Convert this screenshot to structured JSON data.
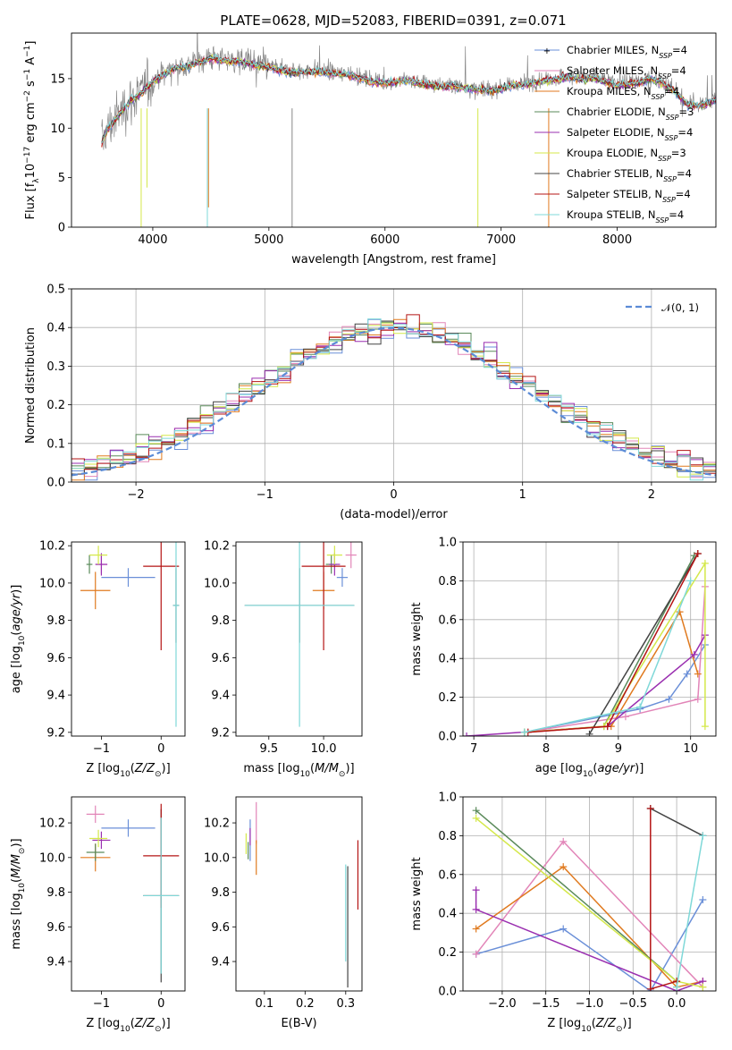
{
  "figure_title": "PLATE=0628, MJD=52083, FIBERID=0391, z=0.071",
  "colors": {
    "Chabrier MILES": "#6a8fd8",
    "Salpeter MILES": "#e285b8",
    "Kroupa MILES": "#e07a1f",
    "Chabrier ELODIE": "#5a8a5a",
    "Salpeter ELODIE": "#9a2fb0",
    "Kroupa ELODIE": "#d4e84a",
    "Chabrier STELIB": "#444444",
    "Salpeter STELIB": "#b41414",
    "Kroupa STELIB": "#7fd8d8",
    "data": "#888888",
    "normal": "#5b8bd6"
  },
  "chart_data": [
    {
      "type": "line",
      "id": "spectrum",
      "title": "PLATE=0628, MJD=52083, FIBERID=0391, z=0.071",
      "xlabel": "wavelength [Angstrom, rest frame]",
      "ylabel": "Flux [fλ10⁻¹⁷ erg cm⁻² s⁻¹ A⁻¹]",
      "xlim": [
        3300,
        8850
      ],
      "ylim": [
        0,
        19.6
      ],
      "xticks": [
        4000,
        5000,
        6000,
        7000,
        8000
      ],
      "yticks": [
        0,
        5,
        10,
        15
      ],
      "grid": false,
      "legend_position": "top-right",
      "continuum": [
        [
          3560,
          8.5
        ],
        [
          3600,
          9.8
        ],
        [
          3700,
          11.3
        ],
        [
          3800,
          12.8
        ],
        [
          3900,
          13.6
        ],
        [
          4000,
          14.8
        ],
        [
          4100,
          15.6
        ],
        [
          4200,
          16.3
        ],
        [
          4300,
          16.4
        ],
        [
          4400,
          16.8
        ],
        [
          4500,
          17.2
        ],
        [
          4600,
          17.0
        ],
        [
          4700,
          16.9
        ],
        [
          4800,
          16.8
        ],
        [
          4900,
          16.5
        ],
        [
          5000,
          16.3
        ],
        [
          5100,
          16.0
        ],
        [
          5200,
          15.7
        ],
        [
          5300,
          15.8
        ],
        [
          5400,
          15.9
        ],
        [
          5500,
          15.7
        ],
        [
          5600,
          15.6
        ],
        [
          5700,
          15.5
        ],
        [
          5800,
          15.2
        ],
        [
          5900,
          14.8
        ],
        [
          6000,
          14.7
        ],
        [
          6100,
          14.8
        ],
        [
          6200,
          15.0
        ],
        [
          6300,
          14.6
        ],
        [
          6400,
          14.5
        ],
        [
          6500,
          14.3
        ],
        [
          6600,
          14.4
        ],
        [
          6700,
          14.2
        ],
        [
          6800,
          14.0
        ],
        [
          6900,
          13.9
        ],
        [
          7000,
          14.1
        ],
        [
          7100,
          14.4
        ],
        [
          7200,
          14.5
        ],
        [
          7300,
          14.8
        ],
        [
          7400,
          15.0
        ],
        [
          7500,
          15.1
        ],
        [
          7600,
          15.3
        ],
        [
          7700,
          15.0
        ],
        [
          7800,
          15.2
        ],
        [
          7900,
          14.8
        ],
        [
          8000,
          14.5
        ],
        [
          8100,
          14.6
        ],
        [
          8200,
          14.8
        ],
        [
          8300,
          15.1
        ],
        [
          8400,
          14.6
        ],
        [
          8500,
          13.8
        ],
        [
          8600,
          12.5
        ],
        [
          8700,
          12.3
        ],
        [
          8850,
          13.0
        ]
      ],
      "series": [
        {
          "name": "Chabrier MILES, N_SSP=4"
        },
        {
          "name": "Salpeter MILES, N_SSP=4"
        },
        {
          "name": "Kroupa MILES, N_SSP=4"
        },
        {
          "name": "Chabrier ELODIE, N_SSP=3"
        },
        {
          "name": "Salpeter ELODIE, N_SSP=4"
        },
        {
          "name": "Kroupa ELODIE, N_SSP=3"
        },
        {
          "name": "Chabrier STELIB, N_SSP=4"
        },
        {
          "name": "Salpeter STELIB, N_SSP=4"
        },
        {
          "name": "Kroupa STELIB, N_SSP=4"
        }
      ],
      "legend": [
        {
          "pre": "Chabrier MILES, N",
          "sub": "SSP",
          "post": "=4"
        },
        {
          "pre": "Salpeter MILES, N",
          "sub": "SSP",
          "post": "=4"
        },
        {
          "pre": "Kroupa MILES, N",
          "sub": "SSP",
          "post": "=4"
        },
        {
          "pre": "Chabrier ELODIE, N",
          "sub": "SSP",
          "post": "=3"
        },
        {
          "pre": "Salpeter ELODIE, N",
          "sub": "SSP",
          "post": "=4"
        },
        {
          "pre": "Kroupa ELODIE, N",
          "sub": "SSP",
          "post": "=3"
        },
        {
          "pre": "Chabrier STELIB, N",
          "sub": "SSP",
          "post": "=4"
        },
        {
          "pre": "Salpeter STELIB, N",
          "sub": "SSP",
          "post": "=4"
        },
        {
          "pre": "Kroupa STELIB, N",
          "sub": "SSP",
          "post": "=4"
        }
      ]
    },
    {
      "type": "histogram",
      "id": "residuals",
      "xlabel": "(data-model)/error",
      "ylabel": "Normed distribution",
      "xlim": [
        -2.5,
        2.5
      ],
      "ylim": [
        0,
        0.5
      ],
      "xticks": [
        -2,
        -1,
        0,
        1,
        2
      ],
      "yticks": [
        0.0,
        0.1,
        0.2,
        0.3,
        0.4,
        0.5
      ],
      "grid": true,
      "bin_width": 0.1,
      "reference_curve": {
        "name": "𝒩(0, 1)",
        "legend_position": "top-right"
      }
    },
    {
      "type": "scatter",
      "id": "age-vs-Z",
      "xlabel": "Z [log10(Z/Z⊙)]",
      "ylabel": "age [log10(age/yr)]",
      "xlim": [
        -1.5,
        0.4
      ],
      "ylim": [
        9.18,
        10.22
      ],
      "xticks": [
        -1,
        0
      ],
      "yticks": [
        9.2,
        9.4,
        9.6,
        9.8,
        10.0,
        10.2
      ],
      "points": [
        {
          "model": "Chabrier MILES",
          "x": -0.55,
          "xerr": 0.45,
          "y": 10.03,
          "yerr": 0.05
        },
        {
          "model": "Salpeter MILES",
          "x": -1.0,
          "xerr": 0.1,
          "y": 10.1,
          "yerr": 0.05
        },
        {
          "model": "Kroupa MILES",
          "x": -1.1,
          "xerr": 0.25,
          "y": 9.96,
          "yerr": 0.1
        },
        {
          "model": "Chabrier ELODIE",
          "x": -1.2,
          "xerr": 0.05,
          "y": 10.1,
          "yerr": 0.05
        },
        {
          "model": "Salpeter ELODIE",
          "x": -1.0,
          "xerr": 0.1,
          "y": 10.1,
          "yerr": 0.06
        },
        {
          "model": "Kroupa ELODIE",
          "x": -1.05,
          "xerr": 0.15,
          "y": 10.15,
          "yerr": 0.05
        },
        {
          "model": "Chabrier STELIB",
          "x": 0.25,
          "xerr": 0.05,
          "y": 9.88,
          "yerr": 0.2
        },
        {
          "model": "Salpeter STELIB",
          "x": 0.0,
          "xerr": 0.3,
          "y": 10.09,
          "yerr": 0.45
        },
        {
          "model": "Kroupa STELIB",
          "x": 0.25,
          "xerr": 0.05,
          "y": 9.88,
          "yerr": 0.65
        }
      ]
    },
    {
      "type": "scatter",
      "id": "age-vs-mass",
      "xlabel": "mass [log10(M/M⊙)]",
      "ylabel": "",
      "xlim": [
        9.2,
        10.35
      ],
      "ylim": [
        9.18,
        10.22
      ],
      "xticks": [
        9.5,
        10.0
      ],
      "yticks": [
        9.2,
        9.4,
        9.6,
        9.8,
        10.0,
        10.2
      ],
      "points": [
        {
          "model": "Chabrier MILES",
          "x": 10.17,
          "xerr": 0.05,
          "y": 10.03,
          "yerr": 0.05
        },
        {
          "model": "Salpeter MILES",
          "x": 10.25,
          "xerr": 0.05,
          "y": 10.15,
          "yerr": 0.07
        },
        {
          "model": "Kroupa MILES",
          "x": 10.0,
          "xerr": 0.1,
          "y": 9.96,
          "yerr": 0.1
        },
        {
          "model": "Chabrier ELODIE",
          "x": 10.07,
          "xerr": 0.05,
          "y": 10.1,
          "yerr": 0.05
        },
        {
          "model": "Salpeter ELODIE",
          "x": 10.1,
          "xerr": 0.05,
          "y": 10.1,
          "yerr": 0.06
        },
        {
          "model": "Kroupa ELODIE",
          "x": 10.1,
          "xerr": 0.07,
          "y": 10.15,
          "yerr": 0.05
        },
        {
          "model": "Chabrier STELIB",
          "x": 9.78,
          "xerr": 0.5,
          "y": 9.88,
          "yerr": 0.2
        },
        {
          "model": "Salpeter STELIB",
          "x": 10.0,
          "xerr": 0.2,
          "y": 10.09,
          "yerr": 0.45
        },
        {
          "model": "Kroupa STELIB",
          "x": 9.78,
          "xerr": 0.5,
          "y": 9.88,
          "yerr": 0.65
        }
      ]
    },
    {
      "type": "line",
      "id": "weight-vs-age",
      "xlabel": "age [log10(age/yr)]",
      "ylabel": "mass weight",
      "xlim": [
        6.85,
        10.35
      ],
      "ylim": [
        0,
        1.0
      ],
      "xticks": [
        7,
        8,
        9,
        10
      ],
      "yticks": [
        0.0,
        0.2,
        0.4,
        0.6,
        0.8,
        1.0
      ],
      "grid": true,
      "series": [
        {
          "model": "Chabrier MILES",
          "x": [
            7.7,
            9.3,
            9.7,
            9.95,
            10.2
          ],
          "y": [
            0.02,
            0.14,
            0.19,
            0.32,
            0.47
          ]
        },
        {
          "model": "Salpeter MILES",
          "x": [
            7.7,
            9.1,
            10.1,
            10.2
          ],
          "y": [
            0.02,
            0.1,
            0.19,
            0.77
          ]
        },
        {
          "model": "Kroupa MILES",
          "x": [
            7.7,
            8.9,
            9.85,
            10.1
          ],
          "y": [
            0.02,
            0.05,
            0.64,
            0.32
          ]
        },
        {
          "model": "Chabrier ELODIE",
          "x": [
            7.7,
            8.8,
            10.05
          ],
          "y": [
            0.02,
            0.05,
            0.93
          ]
        },
        {
          "model": "Salpeter ELODIE",
          "x": [
            6.9,
            8.85,
            10.05,
            10.2
          ],
          "y": [
            0.0,
            0.05,
            0.42,
            0.52
          ]
        },
        {
          "model": "Kroupa ELODIE",
          "x": [
            7.7,
            8.8,
            10.2,
            10.2
          ],
          "y": [
            0.02,
            0.05,
            0.89,
            0.05
          ]
        },
        {
          "model": "Chabrier STELIB",
          "x": [
            8.6,
            10.1
          ],
          "y": [
            0.01,
            0.94
          ]
        },
        {
          "model": "Salpeter STELIB",
          "x": [
            7.75,
            8.85,
            10.1
          ],
          "y": [
            0.02,
            0.05,
            0.94
          ]
        },
        {
          "model": "Kroupa STELIB",
          "x": [
            7.7,
            9.3,
            10.0
          ],
          "y": [
            0.02,
            0.15,
            0.8
          ]
        }
      ]
    },
    {
      "type": "scatter",
      "id": "mass-vs-Z",
      "xlabel": "Z [log10(Z/Z⊙)]",
      "ylabel": "mass [log10(M/M⊙)]",
      "xlim": [
        -1.5,
        0.4
      ],
      "ylim": [
        9.23,
        10.35
      ],
      "xticks": [
        -1,
        0
      ],
      "yticks": [
        9.4,
        9.6,
        9.8,
        10.0,
        10.2
      ],
      "points": [
        {
          "model": "Chabrier MILES",
          "x": -0.55,
          "xerr": 0.45,
          "y": 10.17,
          "yerr": 0.05
        },
        {
          "model": "Salpeter MILES",
          "x": -1.1,
          "xerr": 0.15,
          "y": 10.25,
          "yerr": 0.05
        },
        {
          "model": "Kroupa MILES",
          "x": -1.1,
          "xerr": 0.25,
          "y": 10.0,
          "yerr": 0.08
        },
        {
          "model": "Chabrier ELODIE",
          "x": -1.1,
          "xerr": 0.15,
          "y": 10.03,
          "yerr": 0.05
        },
        {
          "model": "Salpeter ELODIE",
          "x": -1.0,
          "xerr": 0.15,
          "y": 10.1,
          "yerr": 0.05
        },
        {
          "model": "Kroupa ELODIE",
          "x": -1.05,
          "xerr": 0.15,
          "y": 10.11,
          "yerr": 0.05
        },
        {
          "model": "Chabrier STELIB",
          "x": 0.0,
          "xerr": 0.3,
          "y": 9.78,
          "yerr": 0.5
        },
        {
          "model": "Salpeter STELIB",
          "x": 0.0,
          "xerr": 0.3,
          "y": 10.01,
          "yerr": 0.3
        },
        {
          "model": "Kroupa STELIB",
          "x": 0.0,
          "xerr": 0.3,
          "y": 9.78,
          "yerr": 0.45
        }
      ]
    },
    {
      "type": "scatter",
      "id": "mass-vs-EBV",
      "xlabel": "E(B-V)",
      "ylabel": "",
      "xlim": [
        0.03,
        0.34
      ],
      "ylim": [
        9.23,
        10.35
      ],
      "xticks": [
        0.1,
        0.2,
        0.3
      ],
      "yticks": [
        9.4,
        9.6,
        9.8,
        10.0,
        10.2
      ],
      "points": [
        {
          "model": "Chabrier MILES",
          "x": 0.065,
          "y": 10.1,
          "yerr": 0.12
        },
        {
          "model": "Salpeter MILES",
          "x": 0.08,
          "y": 10.2,
          "yerr": 0.12
        },
        {
          "model": "Kroupa MILES",
          "x": 0.08,
          "y": 10.0,
          "yerr": 0.1
        },
        {
          "model": "Chabrier ELODIE",
          "x": 0.06,
          "y": 10.04,
          "yerr": 0.05
        },
        {
          "model": "Salpeter ELODIE",
          "x": 0.065,
          "y": 10.12,
          "yerr": 0.05
        },
        {
          "model": "Kroupa ELODIE",
          "x": 0.055,
          "y": 10.08,
          "yerr": 0.06
        },
        {
          "model": "Chabrier STELIB",
          "x": 0.305,
          "y": 9.6,
          "yerr": 0.35
        },
        {
          "model": "Salpeter STELIB",
          "x": 0.33,
          "y": 9.9,
          "yerr": 0.2
        },
        {
          "model": "Kroupa STELIB",
          "x": 0.3,
          "y": 9.68,
          "yerr": 0.28
        }
      ]
    },
    {
      "type": "line",
      "id": "weight-vs-Z",
      "xlabel": "Z [log10(Z/Z⊙)]",
      "ylabel": "mass weight",
      "xlim": [
        -2.45,
        0.45
      ],
      "ylim": [
        0,
        1.0
      ],
      "xticks": [
        -2.0,
        -1.5,
        -1.0,
        -0.5,
        0.0
      ],
      "yticks": [
        0.0,
        0.2,
        0.4,
        0.6,
        0.8,
        1.0
      ],
      "grid": true,
      "series": [
        {
          "model": "Chabrier MILES",
          "x": [
            -2.3,
            -1.3,
            -0.3,
            0.3
          ],
          "y": [
            0.19,
            0.32,
            0.0,
            0.47
          ]
        },
        {
          "model": "Salpeter MILES",
          "x": [
            -2.3,
            -1.3,
            0.3
          ],
          "y": [
            0.19,
            0.77,
            0.02
          ]
        },
        {
          "model": "Kroupa MILES",
          "x": [
            -2.3,
            -1.3,
            0.0,
            0.3
          ],
          "y": [
            0.32,
            0.64,
            0.02,
            0.05
          ]
        },
        {
          "model": "Chabrier ELODIE",
          "x": [
            -2.3,
            0.0
          ],
          "y": [
            0.93,
            0.05
          ]
        },
        {
          "model": "Salpeter ELODIE",
          "x": [
            -2.3,
            -2.3,
            0.0,
            0.3
          ],
          "y": [
            0.52,
            0.42,
            0.0,
            0.05
          ]
        },
        {
          "model": "Kroupa ELODIE",
          "x": [
            -2.3,
            0.0,
            0.3
          ],
          "y": [
            0.89,
            0.05,
            0.02
          ]
        },
        {
          "model": "Chabrier STELIB",
          "x": [
            -0.3,
            0.3
          ],
          "y": [
            0.94,
            0.8
          ]
        },
        {
          "model": "Salpeter STELIB",
          "x": [
            -0.3,
            -0.3,
            0.0
          ],
          "y": [
            0.94,
            0.01,
            0.05
          ]
        },
        {
          "model": "Kroupa STELIB",
          "x": [
            0.0,
            0.3
          ],
          "y": [
            0.02,
            0.8
          ]
        }
      ]
    }
  ],
  "axis_label_parts": {
    "flux_y": {
      "a": "Flux [f",
      "b": "λ",
      "c": "10",
      "d": "−17",
      "e": " erg cm",
      "f": "−2",
      "g": " s",
      "h": "−1",
      "i": " A",
      "j": "−1",
      "k": "]"
    },
    "logZ": {
      "a": "Z [log",
      "b": "10",
      "c": "(",
      "d": "Z/Z",
      "e": "⊙",
      "f": ")]"
    },
    "logM": {
      "a": "mass [log",
      "b": "10",
      "c": "(",
      "d": "M/M",
      "e": "⊙",
      "f": ")]"
    },
    "logAge": {
      "a": "age  [log",
      "b": "10",
      "c": "(",
      "d": "age/yr",
      "e": ")]"
    }
  }
}
